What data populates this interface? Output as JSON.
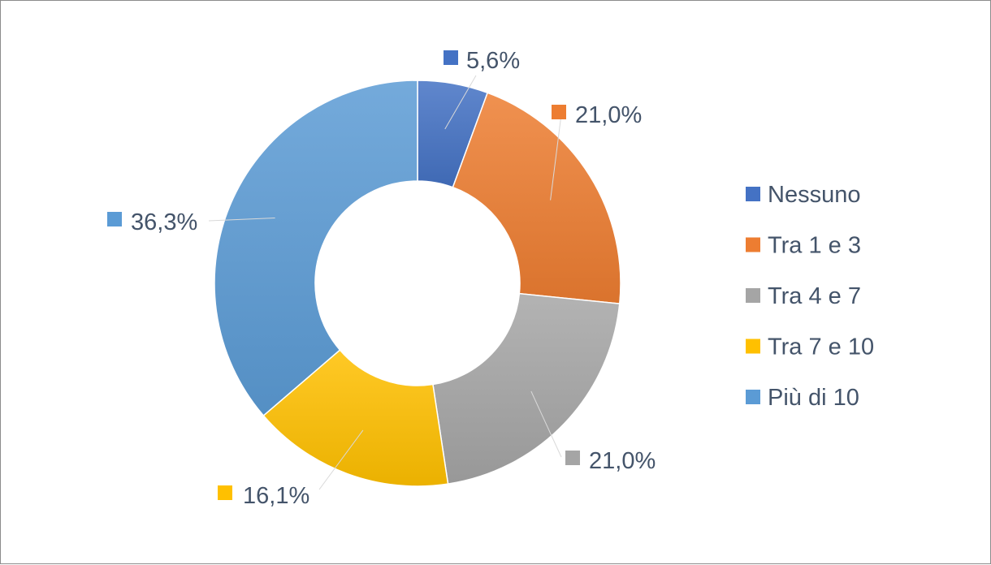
{
  "chart_data": {
    "type": "pie",
    "subtype": "doughnut",
    "title": "",
    "categories": [
      "Nessuno",
      "Tra 1 e 3",
      "Tra 4 e 7",
      "Tra 7 e 10",
      "Più di 10"
    ],
    "values": [
      5.6,
      21.0,
      21.0,
      16.1,
      36.3
    ],
    "value_labels": [
      "5,6%",
      "21,0%",
      "21,0%",
      "16,1%",
      "36,3%"
    ],
    "colors": [
      "#4472c4",
      "#ed7d31",
      "#a5a5a5",
      "#ffc000",
      "#5b9bd5"
    ],
    "legend_position": "right",
    "data_label_color": "#44546a"
  }
}
